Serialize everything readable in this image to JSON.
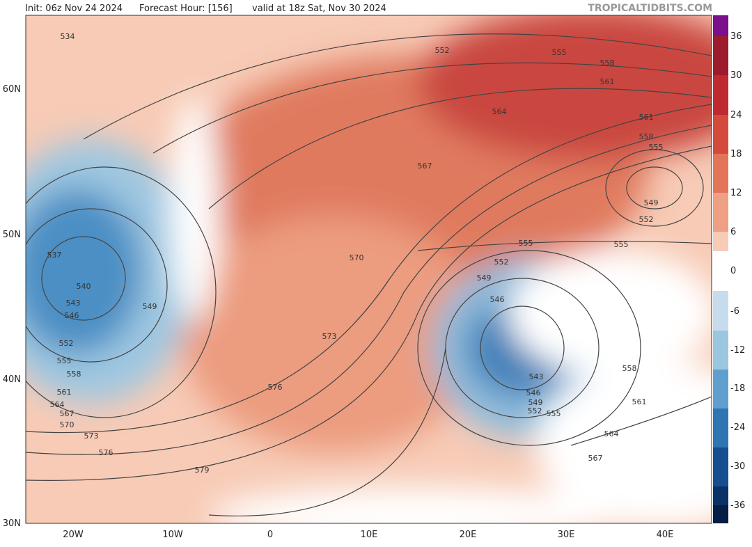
{
  "header": {
    "init": "Init: 06z Nov 24 2024",
    "forecast_hour": "Forecast Hour: [156]",
    "valid": "valid at 18z Sat, Nov 30 2024",
    "watermark": "TROPICALTIDBITS.COM"
  },
  "colorbar": {
    "ticks": [
      "36",
      "30",
      "24",
      "18",
      "12",
      "6",
      "0",
      "-6",
      "-12",
      "-18",
      "-24",
      "-30",
      "-36"
    ]
  },
  "longitude_labels": [
    "20W",
    "10W",
    "0",
    "10E",
    "20E",
    "30E",
    "40E"
  ],
  "latitude_labels": [
    "60N",
    "50N",
    "40N",
    "30N"
  ],
  "contour_labels": [
    "534",
    "537",
    "540",
    "543",
    "546",
    "549",
    "552",
    "555",
    "558",
    "561",
    "564",
    "567",
    "570",
    "573",
    "576",
    "579",
    "576",
    "573",
    "570",
    "567",
    "564",
    "561",
    "558",
    "555",
    "552",
    "561",
    "558",
    "555",
    "549",
    "552",
    "555",
    "555",
    "552",
    "549",
    "546",
    "543",
    "546",
    "549",
    "552",
    "555",
    "558",
    "561",
    "564",
    "567"
  ]
}
